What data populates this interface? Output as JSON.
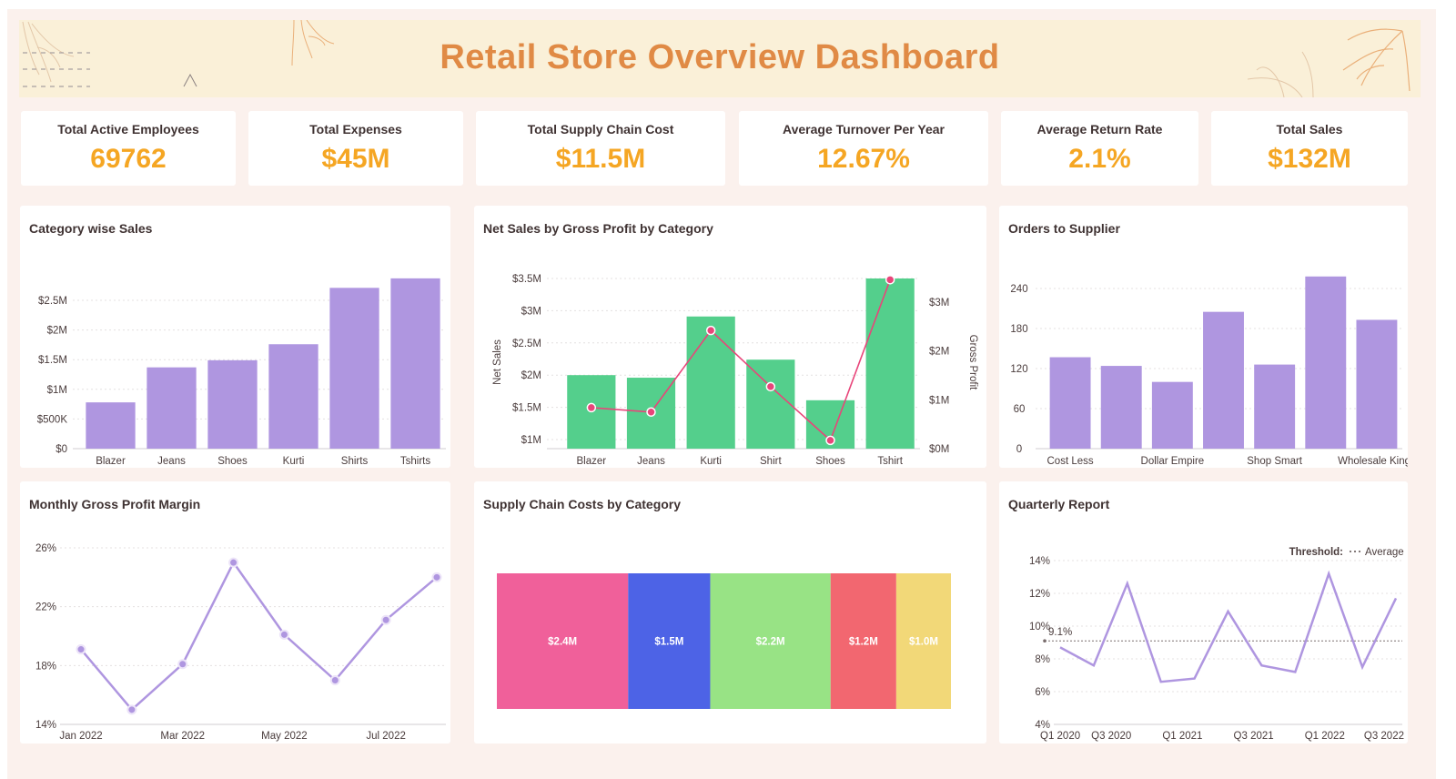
{
  "header": {
    "title": "Retail Store Overview Dashboard"
  },
  "kpis": [
    {
      "label": "Total Active Employees",
      "value": "69762"
    },
    {
      "label": "Total Expenses",
      "value": "$45M"
    },
    {
      "label": "Total Supply Chain Cost",
      "value": "$11.5M"
    },
    {
      "label": "Average Turnover Per Year",
      "value": "12.67%"
    },
    {
      "label": "Average Return Rate",
      "value": "2.1%"
    },
    {
      "label": "Total Sales",
      "value": "$132M"
    }
  ],
  "colors": {
    "accent": "#f5a623",
    "title": "#e08a45",
    "purple": "#af96e0",
    "green": "#54cf8c",
    "pink_line": "#e8457a"
  },
  "chart_data": [
    {
      "id": "category_sales",
      "type": "bar",
      "title": "Category wise Sales",
      "categories": [
        "Blazer",
        "Jeans",
        "Shoes",
        "Kurti",
        "Shirts",
        "Tshirts"
      ],
      "values": [
        780000,
        1370000,
        1490000,
        1760000,
        2710000,
        2870000
      ],
      "ylim": [
        0,
        2870000
      ],
      "yticks": [
        0,
        500000,
        1000000,
        1500000,
        2000000,
        2500000
      ],
      "ytick_labels": [
        "$0",
        "$500K",
        "$1M",
        "$1.5M",
        "$2M",
        "$2.5M"
      ],
      "grid": true
    },
    {
      "id": "net_sales_gross_profit",
      "type": "bar",
      "title": "Net Sales by Gross Profit by Category",
      "categories": [
        "Blazer",
        "Jeans",
        "Kurti",
        "Shirt",
        "Shoes",
        "Tshirt"
      ],
      "series": [
        {
          "name": "Net Sales",
          "type": "bar",
          "axis": "left",
          "values": [
            2000000,
            1960000,
            2910000,
            2240000,
            1610000,
            3500000
          ]
        },
        {
          "name": "Gross Profit",
          "type": "line",
          "axis": "right",
          "values": [
            840000,
            750000,
            2420000,
            1270000,
            170000,
            3460000
          ]
        }
      ],
      "ylabel": "Net Sales",
      "y2label": "Gross Profit",
      "ylim": [
        850000,
        3500000
      ],
      "y2lim": [
        0,
        3500000
      ],
      "yticks": [
        1000000,
        1500000,
        2000000,
        2500000,
        3000000,
        3500000
      ],
      "ytick_labels": [
        "$1M",
        "$1.5M",
        "$2M",
        "$2.5M",
        "$3M",
        "$3.5M"
      ],
      "y2ticks": [
        0,
        1000000,
        2000000,
        3000000
      ],
      "y2tick_labels": [
        "$0M",
        "$1M",
        "$2M",
        "$3M"
      ],
      "grid": true
    },
    {
      "id": "orders_to_supplier",
      "type": "bar",
      "title": "Orders to Supplier",
      "categories": [
        "Cost Less",
        "",
        "Dollar Empire",
        "",
        "Shop Smart",
        "",
        "Wholesale Kings"
      ],
      "values": [
        137,
        124,
        100,
        205,
        126,
        258,
        193
      ],
      "ylim": [
        0,
        258
      ],
      "yticks": [
        0,
        60,
        120,
        180,
        240
      ],
      "ytick_labels": [
        "0",
        "60",
        "120",
        "180",
        "240"
      ],
      "grid": true
    },
    {
      "id": "monthly_gpm",
      "type": "line",
      "title": "Monthly Gross Profit Margin",
      "x": [
        "Jan 2022",
        "Feb 2022",
        "Mar 2022",
        "Apr 2022",
        "May 2022",
        "Jun 2022",
        "Jul 2022",
        "Aug 2022"
      ],
      "xtick_labels": [
        "Jan 2022",
        "",
        "Mar 2022",
        "",
        "May 2022",
        "",
        "Jul 2022",
        ""
      ],
      "values": [
        19.1,
        15.0,
        18.1,
        25.0,
        20.1,
        17.0,
        21.1,
        24.0
      ],
      "ylim": [
        14,
        26
      ],
      "yticks": [
        14,
        18,
        22,
        26
      ],
      "ytick_labels": [
        "14%",
        "18%",
        "22%",
        "26%"
      ],
      "grid": true
    },
    {
      "id": "supply_chain_costs",
      "type": "bar",
      "title": "Supply Chain Costs by Category",
      "values": [
        2.4,
        1.5,
        2.2,
        1.2,
        1.0
      ],
      "labels": [
        "$2.4M",
        "$1.5M",
        "$2.2M",
        "$1.2M",
        "$1.0M"
      ],
      "colors": [
        "#f0609a",
        "#4d63e6",
        "#98e385",
        "#f26770",
        "#f2d878"
      ]
    },
    {
      "id": "quarterly_report",
      "type": "line",
      "title": "Quarterly Report",
      "x": [
        "Q1 2020",
        "Q2 2020",
        "Q3 2020",
        "Q4 2020",
        "Q1 2021",
        "Q2 2021",
        "Q3 2021",
        "Q4 2021",
        "Q1 2022",
        "Q2 2022",
        "Q3 2022"
      ],
      "xtick_labels": [
        "Q1 2020",
        "",
        "Q3 2020",
        "",
        "Q1 2021",
        "",
        "Q3 2021",
        "",
        "Q1 2022",
        "",
        "Q3 2022"
      ],
      "values": [
        8.7,
        7.6,
        12.6,
        6.6,
        6.8,
        10.9,
        7.6,
        7.2,
        13.2,
        7.5,
        11.7
      ],
      "ylim": [
        4,
        14
      ],
      "yticks": [
        4,
        6,
        8,
        10,
        12,
        14
      ],
      "ytick_labels": [
        "4%",
        "6%",
        "8%",
        "10%",
        "12%",
        "14%"
      ],
      "threshold": {
        "value": 9.1,
        "label": "9.1%",
        "legend_title": "Threshold:",
        "legend_label": "Average"
      },
      "grid": true
    }
  ]
}
